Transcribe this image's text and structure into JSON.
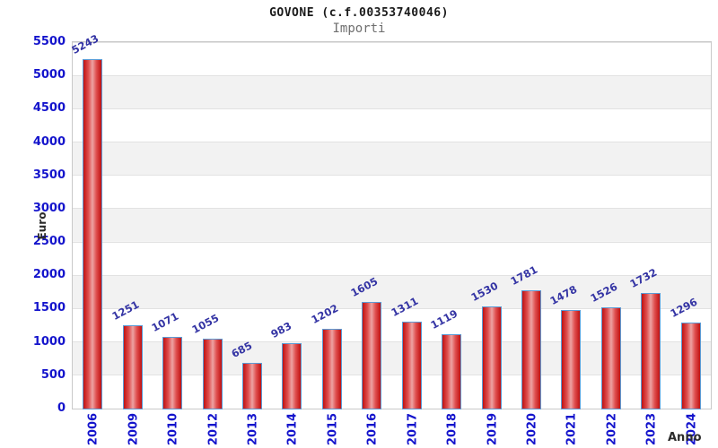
{
  "header": {
    "title": "GOVONE (c.f.00353740046)",
    "subtitle": "Importi"
  },
  "axes": {
    "y_title": "Euro",
    "x_title": "Anno"
  },
  "chart_data": {
    "type": "bar",
    "title": "GOVONE (c.f.00353740046)",
    "subtitle": "Importi",
    "xlabel": "Anno",
    "ylabel": "Euro",
    "categories": [
      "2006",
      "2009",
      "2010",
      "2012",
      "2013",
      "2014",
      "2015",
      "2016",
      "2017",
      "2018",
      "2019",
      "2020",
      "2021",
      "2022",
      "2023",
      "2024"
    ],
    "values": [
      5243,
      1251,
      1071,
      1055,
      685,
      983,
      1202,
      1605,
      1311,
      1119,
      1530,
      1781,
      1478,
      1526,
      1732,
      1296
    ],
    "ylim": [
      0,
      5500
    ],
    "ytick_step": 500,
    "ytick_labels": [
      "5500",
      "5000",
      "4500",
      "4000",
      "3500",
      "3000",
      "2500",
      "2000",
      "1500",
      "1000",
      "500",
      "0"
    ],
    "grid": "horizontal gridlines with alternating white/gray bands every 500",
    "legend_position": "none",
    "bar_value_labels_rotation_deg": -28,
    "x_label_rotation_deg": -90,
    "colors": {
      "bar_border": "#5b9bd5",
      "bar_fill_edge": "#c01212",
      "bar_fill_center": "#eda3a3",
      "tick_text": "#1414cc",
      "value_label_text": "#3434a4",
      "band_gray": "#f2f2f2",
      "gridline": "#e2e2e2",
      "plot_border": "#c9c9c9",
      "title_text": "#1a1a1a",
      "subtitle_text": "#6f6f6f",
      "axis_title_text": "#2b2b2b"
    }
  }
}
